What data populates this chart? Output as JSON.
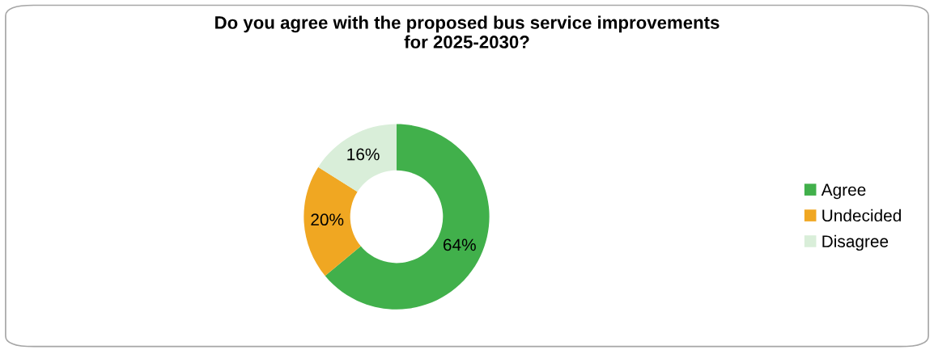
{
  "chart_data": {
    "type": "donut",
    "title": "Do you agree with the proposed bus service improvements\nfor 2025-2030?",
    "categories": [
      "Agree",
      "Undecided",
      "Disagree"
    ],
    "values": [
      64,
      20,
      16
    ],
    "colors": [
      "#41b04b",
      "#f0a722",
      "#d9eed9"
    ],
    "value_labels": [
      "64%",
      "20%",
      "16%"
    ],
    "legend": "right"
  }
}
